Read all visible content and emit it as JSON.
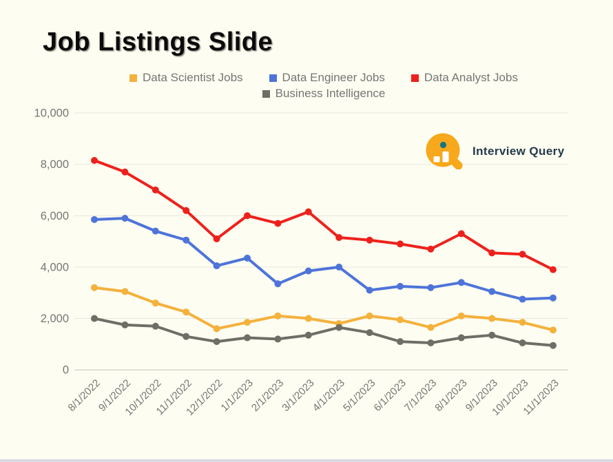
{
  "page": {
    "title": "Job Listings Slide",
    "background": "#FDFDF1",
    "footer_bar_color": "#D9DAE5"
  },
  "logo": {
    "text": "Interview Query",
    "icon": "magnifier-bar-chart-icon",
    "circle_color": "#F7A81B",
    "bar_color": "#FFFFFF",
    "dot_color": "#147585",
    "text_color": "#24384A"
  },
  "axis_style": {
    "tick_label_color": "#757575",
    "gridline_color": "#E7E7DC",
    "zero_line_color": "#C6C6BC"
  },
  "chart_data": {
    "type": "line",
    "title": "Job Listings Slide",
    "legend_position": "top",
    "grid": true,
    "xlabel": "",
    "ylabel": "",
    "ylim": [
      0,
      10000
    ],
    "yticks": [
      0,
      2000,
      4000,
      6000,
      8000,
      10000
    ],
    "ytick_labels": [
      "0",
      "2,000",
      "4,000",
      "6,000",
      "8,000",
      "10,000"
    ],
    "categories": [
      "8/1/2022",
      "9/1/2022",
      "10/1/2022",
      "11/1/2022",
      "12/1/2022",
      "1/1/2023",
      "2/1/2023",
      "3/1/2023",
      "4/1/2023",
      "5/1/2023",
      "6/1/2023",
      "7/1/2023",
      "8/1/2023",
      "9/1/2023",
      "10/1/2023",
      "11/1/2023"
    ],
    "series": [
      {
        "name": "Data Scientist Jobs",
        "color": "#F4B13C",
        "values": [
          3200,
          3050,
          2600,
          2250,
          1600,
          1850,
          2100,
          2000,
          1800,
          2100,
          1950,
          1650,
          2100,
          2000,
          1850,
          1550
        ]
      },
      {
        "name": "Data Engineer Jobs",
        "color": "#4E74D9",
        "values": [
          5850,
          5900,
          5400,
          5050,
          4050,
          4350,
          3350,
          3850,
          4000,
          3100,
          3250,
          3200,
          3400,
          3050,
          2750,
          2800
        ]
      },
      {
        "name": "Data Analyst Jobs",
        "color": "#ED211C",
        "values": [
          8150,
          7700,
          7000,
          6200,
          5100,
          6000,
          5700,
          6150,
          5150,
          5050,
          4900,
          4700,
          5300,
          4550,
          4500,
          3900
        ]
      },
      {
        "name": "Business Intelligence",
        "color": "#6F6E66",
        "values": [
          2000,
          1750,
          1700,
          1300,
          1100,
          1250,
          1200,
          1350,
          1650,
          1450,
          1100,
          1050,
          1250,
          1350,
          1050,
          950
        ]
      }
    ]
  }
}
